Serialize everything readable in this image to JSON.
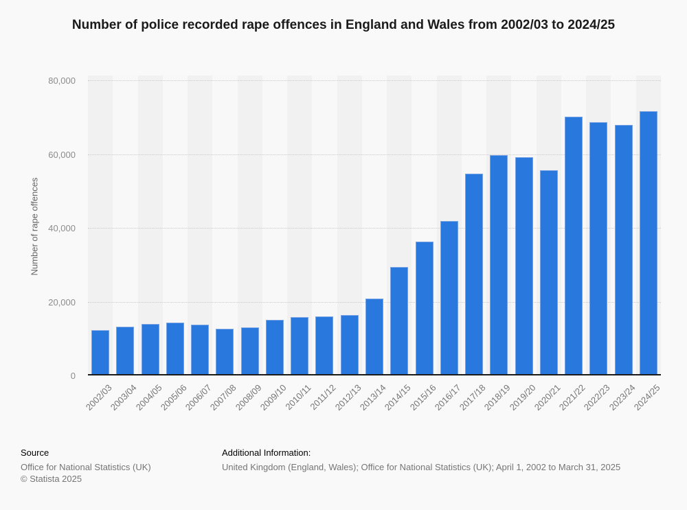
{
  "title": "Number of police recorded rape offences in England and Wales from 2002/03 to 2024/25",
  "chart_data": {
    "type": "bar",
    "title": "Number of police recorded rape offences in England and Wales from 2002/03 to 2024/25",
    "categories": [
      "2002/03",
      "2003/04",
      "2004/05",
      "2005/06",
      "2006/07",
      "2007/08",
      "2008/09",
      "2009/10",
      "2010/11",
      "2011/12",
      "2012/13",
      "2013/14",
      "2014/15",
      "2015/16",
      "2016/17",
      "2017/18",
      "2018/19",
      "2019/20",
      "2020/21",
      "2021/22",
      "2022/23",
      "2023/24",
      "2024/25"
    ],
    "values": [
      12295,
      13272,
      14000,
      14250,
      13780,
      12640,
      13100,
      15080,
      15840,
      16040,
      16370,
      20750,
      29430,
      36200,
      41900,
      54700,
      59700,
      59100,
      55700,
      70100,
      68700,
      67900,
      71600
    ],
    "xlabel": "",
    "ylabel": "Number of rape offences",
    "ylim": [
      0,
      80000
    ],
    "yticks": [
      0,
      20000,
      40000,
      60000,
      80000
    ],
    "ytick_labels": [
      "0",
      "20,000",
      "40,000",
      "60,000",
      "80,000"
    ],
    "gridline_values": [
      20000,
      40000,
      60000,
      80000
    ],
    "grid": true,
    "legend": false,
    "bar_color": "#2878de",
    "bar_edge_color": "#7aa3e6",
    "band_color_a": "#f1f1f2",
    "band_color_b": "#f8f8f9"
  },
  "footer": {
    "source_label": "Source",
    "source_lines": {
      "0": "Office for National Statistics (UK)",
      "1": "© Statista 2025"
    },
    "additional_label": "Additional Information:",
    "additional_text": "United Kingdom (England, Wales); Office for National Statistics (UK); April 1, 2002 to March 31, 2025"
  }
}
